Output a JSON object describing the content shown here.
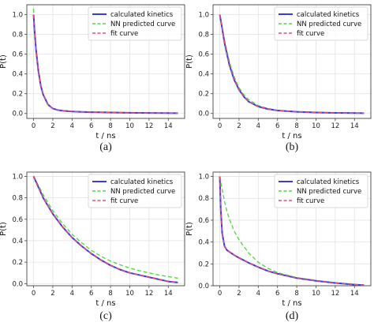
{
  "colors": {
    "calculated": "#3b3bd6",
    "nn": "#59d84a",
    "fit": "#e0507a",
    "grid": "#e3e3e3",
    "axis": "#444444"
  },
  "chart_data": [
    {
      "type": "line",
      "caption": "(a)",
      "xlabel": "t / ns",
      "ylabel": "P(t)",
      "xlim": [
        -0.7,
        15.7
      ],
      "ylim": [
        -0.05,
        1.1
      ],
      "xticks": [
        0,
        2,
        4,
        6,
        8,
        10,
        12,
        14
      ],
      "yticks": [
        0.0,
        0.2,
        0.4,
        0.6,
        0.8,
        1.0
      ],
      "ytick_labels": [
        "0.0",
        "0.2",
        "0.4",
        "0.6",
        "0.8",
        "1.0"
      ],
      "grid": true,
      "legend": "top-right",
      "x": [
        0,
        0.1,
        0.25,
        0.5,
        0.75,
        1,
        1.5,
        2,
        2.5,
        3,
        4,
        5,
        6,
        8,
        10,
        12,
        15
      ],
      "series": [
        {
          "name": "calculated kinetics",
          "style": "solid",
          "values": [
            1.0,
            0.84,
            0.65,
            0.43,
            0.28,
            0.19,
            0.09,
            0.05,
            0.035,
            0.028,
            0.02,
            0.016,
            0.013,
            0.01,
            0.007,
            0.005,
            0.003
          ]
        },
        {
          "name": "NN predicted curve",
          "style": "dashed",
          "values": [
            1.06,
            0.85,
            0.65,
            0.43,
            0.28,
            0.19,
            0.09,
            0.05,
            0.035,
            0.028,
            0.02,
            0.016,
            0.013,
            0.01,
            0.007,
            0.005,
            0.003
          ]
        },
        {
          "name": "fit curve",
          "style": "dashed",
          "values": [
            1.0,
            0.84,
            0.65,
            0.43,
            0.28,
            0.19,
            0.09,
            0.05,
            0.035,
            0.028,
            0.02,
            0.016,
            0.013,
            0.01,
            0.007,
            0.005,
            0.003
          ]
        }
      ]
    },
    {
      "type": "line",
      "caption": "(b)",
      "xlabel": "t / ns",
      "ylabel": "P(t)",
      "xlim": [
        -0.7,
        15.7
      ],
      "ylim": [
        -0.05,
        1.1
      ],
      "xticks": [
        0,
        2,
        4,
        6,
        8,
        10,
        12,
        14
      ],
      "yticks": [
        0.0,
        0.2,
        0.4,
        0.6,
        0.8,
        1.0
      ],
      "ytick_labels": [
        "0.0",
        "0.2",
        "0.4",
        "0.6",
        "0.8",
        "1.0"
      ],
      "grid": true,
      "legend": "top-right",
      "x": [
        0,
        0.25,
        0.5,
        1,
        1.5,
        2,
        2.5,
        3,
        4,
        5,
        6,
        8,
        10,
        12,
        15
      ],
      "series": [
        {
          "name": "calculated kinetics",
          "style": "solid",
          "values": [
            1.0,
            0.86,
            0.71,
            0.49,
            0.34,
            0.24,
            0.17,
            0.12,
            0.07,
            0.045,
            0.03,
            0.017,
            0.01,
            0.006,
            0.003
          ]
        },
        {
          "name": "NN predicted curve",
          "style": "dashed",
          "values": [
            1.0,
            0.87,
            0.74,
            0.52,
            0.37,
            0.26,
            0.19,
            0.14,
            0.08,
            0.05,
            0.032,
            0.018,
            0.011,
            0.007,
            0.004
          ]
        },
        {
          "name": "fit curve",
          "style": "dashed",
          "values": [
            1.0,
            0.86,
            0.71,
            0.49,
            0.34,
            0.24,
            0.17,
            0.12,
            0.07,
            0.045,
            0.03,
            0.017,
            0.01,
            0.006,
            0.003
          ]
        }
      ]
    },
    {
      "type": "line",
      "caption": "(c)",
      "xlabel": "t / ns",
      "ylabel": "P(t)",
      "xlim": [
        -0.7,
        15.7
      ],
      "ylim": [
        -0.02,
        1.04
      ],
      "xticks": [
        0,
        2,
        4,
        6,
        8,
        10,
        12,
        14
      ],
      "yticks": [
        0.0,
        0.2,
        0.4,
        0.6,
        0.8,
        1.0
      ],
      "ytick_labels": [
        "0.0",
        "0.2",
        "0.4",
        "0.6",
        "0.8",
        "1.0"
      ],
      "grid": true,
      "legend": "top-right",
      "x": [
        0,
        1,
        2,
        3,
        4,
        5,
        6,
        7,
        8,
        9,
        10,
        11,
        12,
        13,
        14,
        15
      ],
      "series": [
        {
          "name": "calculated kinetics",
          "style": "solid",
          "values": [
            1.0,
            0.8,
            0.65,
            0.53,
            0.43,
            0.35,
            0.28,
            0.22,
            0.17,
            0.13,
            0.1,
            0.08,
            0.06,
            0.04,
            0.02,
            0.01
          ]
        },
        {
          "name": "NN predicted curve",
          "style": "dashed",
          "values": [
            1.0,
            0.83,
            0.68,
            0.56,
            0.46,
            0.38,
            0.31,
            0.255,
            0.21,
            0.175,
            0.145,
            0.12,
            0.1,
            0.08,
            0.065,
            0.05
          ]
        },
        {
          "name": "fit curve",
          "style": "dashed",
          "values": [
            1.0,
            0.8,
            0.65,
            0.53,
            0.43,
            0.35,
            0.28,
            0.22,
            0.17,
            0.13,
            0.1,
            0.08,
            0.06,
            0.04,
            0.02,
            0.01
          ]
        }
      ]
    },
    {
      "type": "line",
      "caption": "(d)",
      "xlabel": "t / ns",
      "ylabel": "P(t)",
      "xlim": [
        -0.7,
        15.7
      ],
      "ylim": [
        0.0,
        1.04
      ],
      "xticks": [
        0,
        2,
        4,
        6,
        8,
        10,
        12,
        14
      ],
      "yticks": [
        0.0,
        0.2,
        0.4,
        0.6,
        0.8,
        1.0
      ],
      "ytick_labels": [
        "0.0",
        "0.2",
        "0.4",
        "0.6",
        "0.8",
        "1.0"
      ],
      "grid": true,
      "legend": "top-right",
      "x": [
        0,
        0.1,
        0.25,
        0.5,
        0.75,
        1,
        1.5,
        2,
        3,
        4,
        5,
        6,
        8,
        10,
        12,
        14,
        15
      ],
      "series": [
        {
          "name": "calculated kinetics",
          "style": "solid",
          "values": [
            1.0,
            0.7,
            0.48,
            0.36,
            0.325,
            0.31,
            0.28,
            0.255,
            0.21,
            0.17,
            0.135,
            0.11,
            0.07,
            0.045,
            0.025,
            0.01,
            0.005
          ]
        },
        {
          "name": "NN predicted curve",
          "style": "dashed",
          "values": [
            1.0,
            0.95,
            0.88,
            0.77,
            0.68,
            0.61,
            0.5,
            0.42,
            0.3,
            0.215,
            0.16,
            0.12,
            0.075,
            0.048,
            0.028,
            0.013,
            0.007
          ]
        },
        {
          "name": "fit curve",
          "style": "dashed",
          "values": [
            1.0,
            0.7,
            0.48,
            0.36,
            0.325,
            0.31,
            0.28,
            0.255,
            0.21,
            0.17,
            0.135,
            0.11,
            0.07,
            0.045,
            0.025,
            0.01,
            0.005
          ]
        }
      ]
    }
  ]
}
